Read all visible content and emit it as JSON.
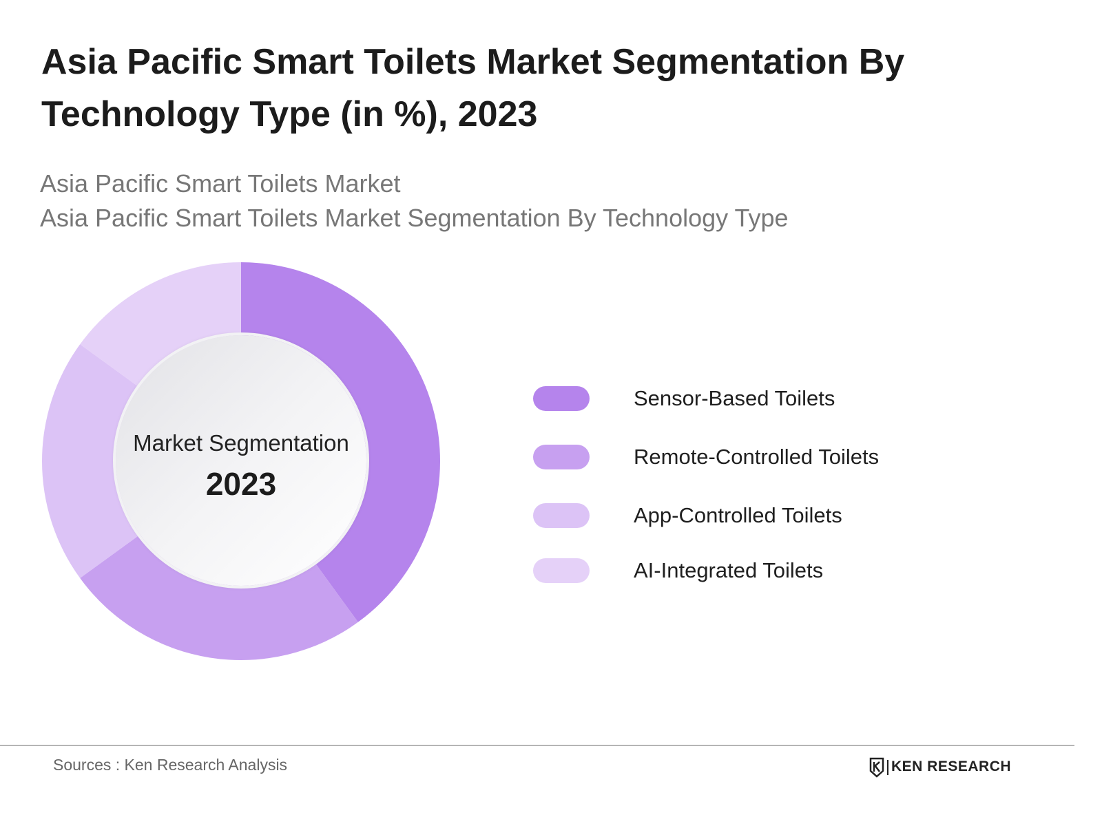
{
  "header": {
    "title": "Asia Pacific Smart Toilets Market Segmentation By Technology Type (in %), 2023",
    "subtitle_line1": "Asia Pacific Smart Toilets Market",
    "subtitle_line2": "Asia Pacific Smart Toilets Market Segmentation By Technology Type"
  },
  "chart_data": {
    "type": "pie",
    "title": "Asia Pacific Smart Toilets Market Segmentation By Technology Type (in %), 2023",
    "center_label": "Market Segmentation",
    "center_year": "2023",
    "legend_position": "right",
    "categories": [
      "Sensor-Based Toilets",
      "Remote-Controlled Toilets",
      "App-Controlled Toilets",
      "AI-Integrated Toilets"
    ],
    "values": [
      40,
      25,
      20,
      15
    ],
    "colors": [
      "#b584ec",
      "#c7a0f0",
      "#dcc3f6",
      "#e5d1f8"
    ]
  },
  "footer": {
    "source": "Sources : Ken Research Analysis",
    "logo_text": "KEN RESEARCH",
    "logo_icon": "ken-research-k-icon"
  }
}
